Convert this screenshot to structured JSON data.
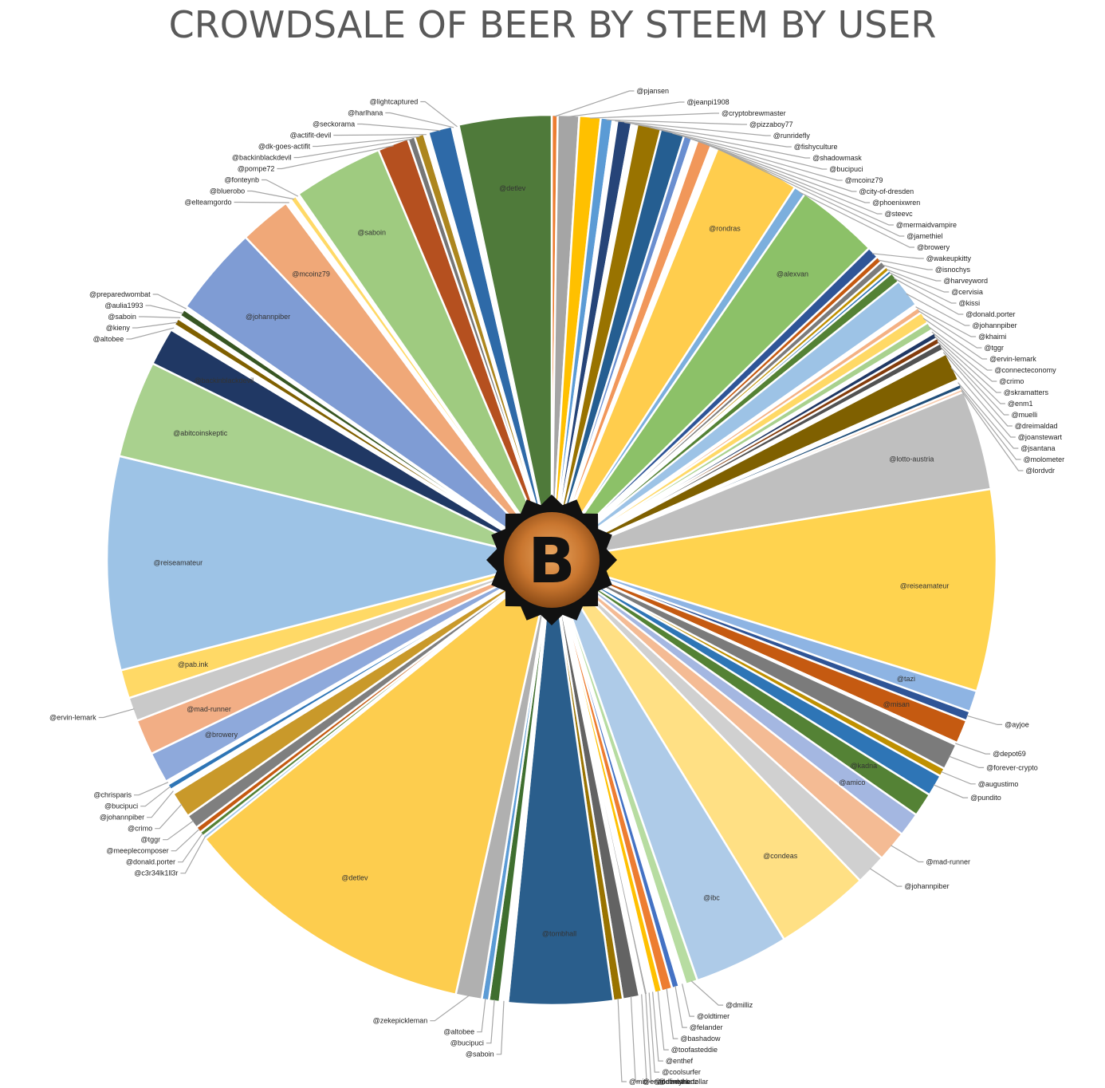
{
  "chart_data": {
    "type": "pie",
    "title": "CROWDSALE OF BEER BY STEEM BY USER",
    "logo_letter": "B",
    "slices": [
      {
        "label": "@pjansen",
        "value": 0.25,
        "color": "#ed7d31",
        "pos": "out"
      },
      {
        "label": "@jeanpi1908",
        "value": 0.9,
        "color": "#a5a5a5",
        "pos": "out"
      },
      {
        "label": "@cryptobrewmaster",
        "value": 0.9,
        "color": "#ffc000",
        "pos": "out"
      },
      {
        "label": "@pizzaboy77",
        "value": 0.5,
        "color": "#5b9bd5",
        "pos": "out"
      },
      {
        "label": "@runridefly",
        "value": 0.2,
        "color": "#ffffff",
        "pos": "out"
      },
      {
        "label": "@fishyculture",
        "value": 0.6,
        "color": "#264478",
        "pos": "out"
      },
      {
        "label": "@shadowmask",
        "value": 0.25,
        "color": "#ffffff",
        "pos": "out"
      },
      {
        "label": "@bucipuci",
        "value": 1.0,
        "color": "#997300",
        "pos": "out"
      },
      {
        "label": "@mcoinz79",
        "value": 1.0,
        "color": "#255e91",
        "pos": "out"
      },
      {
        "label": "@city-of-dresden",
        "value": 0.35,
        "color": "#698ed0",
        "pos": "out"
      },
      {
        "label": "@phoenixwren",
        "value": 0.25,
        "color": "#ffffff",
        "pos": "out"
      },
      {
        "label": "@steevc",
        "value": 0.6,
        "color": "#f1975a",
        "pos": "out"
      },
      {
        "label": "@mermaidvampire",
        "value": 0.15,
        "color": "#ffffff",
        "pos": "out"
      },
      {
        "label": "@jamethiel",
        "value": 0.15,
        "color": "#ffffff",
        "pos": "out"
      },
      {
        "label": "@rondras",
        "value": 3.6,
        "color": "#ffcd4d",
        "pos": "in"
      },
      {
        "label": "@browery",
        "value": 0.5,
        "color": "#7cafdd",
        "pos": "out"
      },
      {
        "label": "@alexvan",
        "value": 3.5,
        "color": "#8cc168",
        "pos": "in"
      },
      {
        "label": "@wakeupkitty",
        "value": 0.5,
        "color": "#2f5597",
        "pos": "out"
      },
      {
        "label": "@isnochys",
        "value": 0.25,
        "color": "#c55a11",
        "pos": "out"
      },
      {
        "label": "@harveyword",
        "value": 0.3,
        "color": "#7b7b7b",
        "pos": "out"
      },
      {
        "label": "@cervisia",
        "value": 0.2,
        "color": "#bf9000",
        "pos": "out"
      },
      {
        "label": "@kissi",
        "value": 0.15,
        "color": "#2e75b6",
        "pos": "out"
      },
      {
        "label": "@donald.porter",
        "value": 0.45,
        "color": "#548235",
        "pos": "out"
      },
      {
        "label": "@johannpiber",
        "value": 1.2,
        "color": "#9dc3e6",
        "pos": "out"
      },
      {
        "label": "@khaimi",
        "value": 0.15,
        "color": "#ffffff",
        "pos": "out"
      },
      {
        "label": "@tggr",
        "value": 0.25,
        "color": "#f4b183",
        "pos": "out"
      },
      {
        "label": "@ervin-lemark",
        "value": 0.5,
        "color": "#ffd966",
        "pos": "out"
      },
      {
        "label": "@connecteconomy",
        "value": 0.35,
        "color": "#a9d18e",
        "pos": "out"
      },
      {
        "label": "@crimo",
        "value": 0.15,
        "color": "#ffffff",
        "pos": "out"
      },
      {
        "label": "@skramatters",
        "value": 0.25,
        "color": "#203864",
        "pos": "out"
      },
      {
        "label": "@enm1",
        "value": 0.25,
        "color": "#843c0c",
        "pos": "out"
      },
      {
        "label": "@muelli",
        "value": 0.3,
        "color": "#525252",
        "pos": "out"
      },
      {
        "label": "@dreimaldad",
        "value": 0.2,
        "color": "#ffffff",
        "pos": "out"
      },
      {
        "label": "@joanstewart",
        "value": 1.2,
        "color": "#7f6000",
        "pos": "out"
      },
      {
        "label": "@jsantana",
        "value": 0.2,
        "color": "#ffffff",
        "pos": "out"
      },
      {
        "label": "@molometer",
        "value": 0.2,
        "color": "#1f4e79",
        "pos": "out"
      },
      {
        "label": "@lordvdr",
        "value": 0.15,
        "color": "#f8cbad",
        "pos": "out"
      },
      {
        "label": "@lotto-austria",
        "value": 4.2,
        "color": "#bfbfbf",
        "pos": "in"
      },
      {
        "label": "@reiseamateur",
        "value": 8.5,
        "color": "#ffd34f",
        "pos": "in"
      },
      {
        "label": "@tazi",
        "value": 0.9,
        "color": "#8eb4e3",
        "pos": "in"
      },
      {
        "label": "@ayjoe",
        "value": 0.4,
        "color": "#2f5597",
        "pos": "out"
      },
      {
        "label": "@misan",
        "value": 1.0,
        "color": "#c55a11",
        "pos": "in"
      },
      {
        "label": "@depot69",
        "value": 0.1,
        "color": "#ffffff",
        "pos": "out"
      },
      {
        "label": "@forever-crypto",
        "value": 1.1,
        "color": "#7b7b7b",
        "pos": "out"
      },
      {
        "label": "@augustimo",
        "value": 0.35,
        "color": "#bf9000",
        "pos": "out"
      },
      {
        "label": "@pundito",
        "value": 0.9,
        "color": "#2e75b6",
        "pos": "out"
      },
      {
        "label": "@kadna",
        "value": 1.0,
        "color": "#548235",
        "pos": "in"
      },
      {
        "label": "@amico",
        "value": 1.0,
        "color": "#a4b7e1",
        "pos": "in"
      },
      {
        "label": "@mad-runner",
        "value": 1.3,
        "color": "#f4bb94",
        "pos": "out"
      },
      {
        "label": "@johannpiber",
        "value": 1.3,
        "color": "#d0d0d0",
        "pos": "out"
      },
      {
        "label": "@condeas",
        "value": 4.0,
        "color": "#ffe084",
        "pos": "in"
      },
      {
        "label": "@ibc",
        "value": 4.0,
        "color": "#aecbe8",
        "pos": "in"
      },
      {
        "label": "@dmilliz",
        "value": 0.5,
        "color": "#b7dca1",
        "pos": "out"
      },
      {
        "label": "@oldtimer",
        "value": 0.3,
        "color": "#ffffff",
        "pos": "out"
      },
      {
        "label": "@felander",
        "value": 0.3,
        "color": "#4472c4",
        "pos": "out"
      },
      {
        "label": "@bashadow",
        "value": 0.45,
        "color": "#ed7d31",
        "pos": "out"
      },
      {
        "label": "@toofasteddie",
        "value": 0.3,
        "color": "#ffc000",
        "pos": "out"
      },
      {
        "label": "@enthef",
        "value": 0.15,
        "color": "#ffffff",
        "pos": "out"
      },
      {
        "label": "@coolsurfer",
        "value": 0.15,
        "color": "#ffffff",
        "pos": "out"
      },
      {
        "label": "@cindyhartz",
        "value": 0.15,
        "color": "#a5a5a5",
        "pos": "out"
      },
      {
        "label": "@definethedollar",
        "value": 0.2,
        "color": "#ffffff",
        "pos": "out"
      },
      {
        "label": "@ervin-lemark",
        "value": 0.7,
        "color": "#636363",
        "pos": "out"
      },
      {
        "label": "@miti",
        "value": 0.4,
        "color": "#997300",
        "pos": "out"
      },
      {
        "label": "@tombhall",
        "value": 4.4,
        "color": "#2a5e8c",
        "pos": "in"
      },
      {
        "label": "@saboin",
        "value": 0.35,
        "color": "#ffffff",
        "pos": "out"
      },
      {
        "label": "@bucipuci",
        "value": 0.45,
        "color": "#3f6f2f",
        "pos": "out"
      },
      {
        "label": "@altobee",
        "value": 0.3,
        "color": "#5b9bd5",
        "pos": "out"
      },
      {
        "label": "@zekepickleman",
        "value": 1.1,
        "color": "#b0b0b0",
        "pos": "out"
      },
      {
        "label": "@detlev",
        "value": 12.5,
        "color": "#fdcd4e",
        "pos": "in"
      },
      {
        "label": "@c3r34lk1ll3r",
        "value": 0.15,
        "color": "#9dc3e6",
        "pos": "out"
      },
      {
        "label": "@donald.porter",
        "value": 0.2,
        "color": "#548235",
        "pos": "out"
      },
      {
        "label": "@meeplecomposer",
        "value": 0.25,
        "color": "#c55a11",
        "pos": "out"
      },
      {
        "label": "@tggr",
        "value": 0.6,
        "color": "#7f7f7f",
        "pos": "out"
      },
      {
        "label": "@crimo",
        "value": 1.1,
        "color": "#c9992a",
        "pos": "out"
      },
      {
        "label": "@johannpiber",
        "value": 0.2,
        "color": "#ffffff",
        "pos": "out"
      },
      {
        "label": "@bucipuci",
        "value": 0.25,
        "color": "#2e75b6",
        "pos": "out"
      },
      {
        "label": "@chrisparis",
        "value": 0.15,
        "color": "#ffffff",
        "pos": "out"
      },
      {
        "label": "@browery",
        "value": 1.3,
        "color": "#8ea9db",
        "pos": "in"
      },
      {
        "label": "@mad-runner",
        "value": 1.5,
        "color": "#f2ae85",
        "pos": "in"
      },
      {
        "label": "@ervin-lemark",
        "value": 1.0,
        "color": "#c9c9c9",
        "pos": "out"
      },
      {
        "label": "@pab.ink",
        "value": 1.2,
        "color": "#ffd966",
        "pos": "in"
      },
      {
        "label": "@reiseamateur",
        "value": 9.0,
        "color": "#9dc3e6",
        "pos": "in"
      },
      {
        "label": "@abitcoinskeptic",
        "value": 4.1,
        "color": "#a9d18e",
        "pos": "in"
      },
      {
        "label": "@backinblackdevil",
        "value": 1.6,
        "color": "#203864",
        "pos": "in"
      },
      {
        "label": "@altobee",
        "value": 0.25,
        "color": "#ffffff",
        "pos": "out"
      },
      {
        "label": "@kieny",
        "value": 0.3,
        "color": "#806000",
        "pos": "out"
      },
      {
        "label": "@saboin",
        "value": 0.15,
        "color": "#ffffff",
        "pos": "out"
      },
      {
        "label": "@aulia1993",
        "value": 0.3,
        "color": "#375623",
        "pos": "out"
      },
      {
        "label": "@preparedwombat",
        "value": 0.15,
        "color": "#ffffff",
        "pos": "out"
      },
      {
        "label": "@johannpiber",
        "value": 3.8,
        "color": "#7f9cd4",
        "pos": "in"
      },
      {
        "label": "@mcoinz79",
        "value": 2.2,
        "color": "#f0a878",
        "pos": "in"
      },
      {
        "label": "@elteamgordo",
        "value": 0.25,
        "color": "#ffffff",
        "pos": "out"
      },
      {
        "label": "@bluerobo",
        "value": 0.25,
        "color": "#ffd966",
        "pos": "out"
      },
      {
        "label": "@fonteynb",
        "value": 0.15,
        "color": "#ffffff",
        "pos": "out"
      },
      {
        "label": "@saboin",
        "value": 3.8,
        "color": "#9fcb80",
        "pos": "in"
      },
      {
        "label": "@pompe72",
        "value": 1.3,
        "color": "#b5501f",
        "pos": "out"
      },
      {
        "label": "@backinblackdevil",
        "value": 0.3,
        "color": "#767676",
        "pos": "out"
      },
      {
        "label": "@dk-goes-actifit",
        "value": 0.4,
        "color": "#ad861e",
        "pos": "out"
      },
      {
        "label": "@actifit-devil",
        "value": 0.2,
        "color": "#ffffff",
        "pos": "out"
      },
      {
        "label": "@seckorama",
        "value": 1.0,
        "color": "#2e6aa8",
        "pos": "out"
      },
      {
        "label": "@harlhana",
        "value": 0.15,
        "color": "#ffffff",
        "pos": "out"
      },
      {
        "label": "@lightcaptured",
        "value": 0.15,
        "color": "#ffffff",
        "pos": "out"
      },
      {
        "label": "@detlev",
        "value": 3.9,
        "color": "#4f7a3a",
        "pos": "in"
      }
    ]
  }
}
